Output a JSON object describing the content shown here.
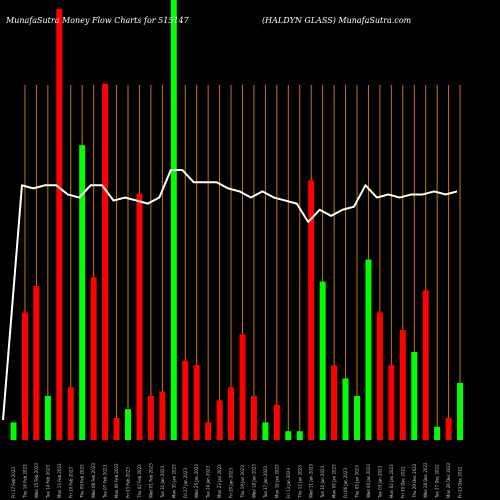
{
  "chart_data": {
    "type": "bar",
    "title_left": "MunafaSutra  Money Flow  Charts for 515147",
    "title_right": "(HALDYN  GLASS) MunafaSutra.com",
    "colors": {
      "up": "#00ff00",
      "down": "#ff0000",
      "line": "#ffffff",
      "grid": "#c87800",
      "background": "#000000"
    },
    "bars": [
      {
        "value": 4,
        "color": "up"
      },
      {
        "value": 29,
        "color": "down"
      },
      {
        "value": 35,
        "color": "down"
      },
      {
        "value": 10,
        "color": "up"
      },
      {
        "value": 98,
        "color": "down"
      },
      {
        "value": 12,
        "color": "down"
      },
      {
        "value": 67,
        "color": "up"
      },
      {
        "value": 37,
        "color": "down"
      },
      {
        "value": 81,
        "color": "down"
      },
      {
        "value": 5,
        "color": "down"
      },
      {
        "value": 7,
        "color": "up"
      },
      {
        "value": 56,
        "color": "down"
      },
      {
        "value": 10,
        "color": "down"
      },
      {
        "value": 11,
        "color": "down"
      },
      {
        "value": 100,
        "color": "up"
      },
      {
        "value": 18,
        "color": "down"
      },
      {
        "value": 17,
        "color": "down"
      },
      {
        "value": 4,
        "color": "down"
      },
      {
        "value": 9,
        "color": "down"
      },
      {
        "value": 12,
        "color": "down"
      },
      {
        "value": 24,
        "color": "down"
      },
      {
        "value": 10,
        "color": "down"
      },
      {
        "value": 4,
        "color": "up"
      },
      {
        "value": 8,
        "color": "down"
      },
      {
        "value": 2,
        "color": "up"
      },
      {
        "value": 2,
        "color": "up"
      },
      {
        "value": 59,
        "color": "down"
      },
      {
        "value": 36,
        "color": "up"
      },
      {
        "value": 17,
        "color": "down"
      },
      {
        "value": 14,
        "color": "up"
      },
      {
        "value": 10,
        "color": "up"
      },
      {
        "value": 41,
        "color": "up"
      },
      {
        "value": 29,
        "color": "down"
      },
      {
        "value": 17,
        "color": "down"
      },
      {
        "value": 25,
        "color": "down"
      },
      {
        "value": 20,
        "color": "up"
      },
      {
        "value": 34,
        "color": "down"
      },
      {
        "value": 3,
        "color": "up"
      },
      {
        "value": 5,
        "color": "down"
      },
      {
        "value": 13,
        "color": "up"
      }
    ],
    "line_values": [
      2,
      61,
      60,
      61,
      61,
      58,
      57,
      61,
      61,
      56,
      57,
      56,
      55,
      57,
      66,
      66,
      62,
      62,
      62,
      60,
      59,
      57,
      59,
      57,
      56,
      55,
      49,
      53,
      51,
      53,
      54,
      61,
      57,
      58,
      57,
      58,
      58,
      59,
      58,
      59
    ],
    "date_labels": [
      "Fri 17 Feb 2023",
      "Thu 16 Feb 2023",
      "Wed 15 Feb 2023",
      "Tue 14 Feb 2023",
      "Mon 13 Feb 2023",
      "Fri 10 Feb 2023",
      "Thu 09 Feb 2023",
      "Wed 08 Feb 2023",
      "Tue 07 Feb 2023",
      "Mon 06 Feb 2023",
      "Fri 03 Feb 2023",
      "Thu 02 Feb 2023",
      "Wed 01 Feb 2023",
      "Tue 31 Jan 2023",
      "Mon 30 Jan 2023",
      "Fri 27 Jan 2023",
      "Wed 25 Jan 2023",
      "Tue 24 Jan 2023",
      "Mon 23 Jan 2023",
      "Fri 20 Jan 2023",
      "Thu 19 Jan 2023",
      "Wed 18 Jan 2023",
      "Tue 17 Jan 2023",
      "Mon 16 Jan 2023",
      "Fri 13 Jan 2023",
      "Thu 12 Jan 2023",
      "Wed 11 Jan 2023",
      "Tue 10 Jan 2023",
      "Mon 09 Jan 2023",
      "Fri 06 Jan 2023",
      "Thu 05 Jan 2023",
      "Wed 04 Jan 2023",
      "Tue 03 Jan 2023",
      "Mon 02 Jan 2023",
      "Fri 30 Dec 2022",
      "Thu 29 Dec 2022",
      "Wed 28 Dec 2022",
      "Tue 27 Dec 2022",
      "Mon 26 Dec 2022",
      "Fri 23 Dec 2022"
    ],
    "ylim": [
      0,
      100
    ]
  }
}
